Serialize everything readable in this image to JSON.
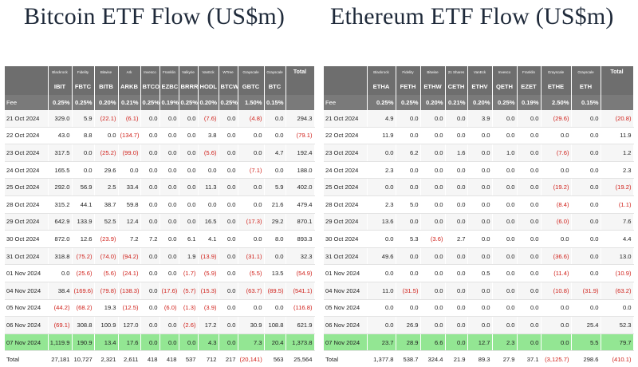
{
  "btc": {
    "title": "Bitcoin ETF Flow (US$m)",
    "issuers": [
      "Blackrock",
      "Fidelity",
      "Bitwise",
      "Ark",
      "Invesco",
      "Franklin",
      "Valkyrie",
      "VanEck",
      "WTree",
      "Grayscale",
      "Grayscale",
      "Total"
    ],
    "tickers": [
      "IBIT",
      "FBTC",
      "BITB",
      "ARKB",
      "BTCO",
      "EZBC",
      "BRRR",
      "HODL",
      "BTCW",
      "GBTC",
      "BTC",
      ""
    ],
    "fee": {
      "label": "Fee",
      "values": [
        "0.25%",
        "0.25%",
        "0.20%",
        "0.21%",
        "0.25%",
        "0.19%",
        "0.25%",
        "0.20%",
        "0.25%",
        "1.50%",
        "0.15%",
        ""
      ]
    },
    "rows": [
      {
        "date": "21 Oct 2024",
        "values": [
          "329.0",
          "5.9",
          "(22.1)",
          "(6.1)",
          "0.0",
          "0.0",
          "0.0",
          "(7.6)",
          "0.0",
          "(4.8)",
          "0.0",
          "294.3"
        ]
      },
      {
        "date": "22 Oct 2024",
        "values": [
          "43.0",
          "8.8",
          "0.0",
          "(134.7)",
          "0.0",
          "0.0",
          "0.0",
          "3.8",
          "0.0",
          "0.0",
          "0.0",
          "(79.1)"
        ]
      },
      {
        "date": "23 Oct 2024",
        "values": [
          "317.5",
          "0.0",
          "(25.2)",
          "(99.0)",
          "0.0",
          "0.0",
          "0.0",
          "(5.6)",
          "0.0",
          "0.0",
          "4.7",
          "192.4"
        ]
      },
      {
        "date": "24 Oct 2024",
        "values": [
          "165.5",
          "0.0",
          "29.6",
          "0.0",
          "0.0",
          "0.0",
          "0.0",
          "0.0",
          "0.0",
          "(7.1)",
          "0.0",
          "188.0"
        ]
      },
      {
        "date": "25 Oct 2024",
        "values": [
          "292.0",
          "56.9",
          "2.5",
          "33.4",
          "0.0",
          "0.0",
          "0.0",
          "11.3",
          "0.0",
          "0.0",
          "5.9",
          "402.0"
        ]
      },
      {
        "date": "28 Oct 2024",
        "values": [
          "315.2",
          "44.1",
          "38.7",
          "59.8",
          "0.0",
          "0.0",
          "0.0",
          "0.0",
          "0.0",
          "0.0",
          "21.6",
          "479.4"
        ]
      },
      {
        "date": "29 Oct 2024",
        "values": [
          "642.9",
          "133.9",
          "52.5",
          "12.4",
          "0.0",
          "0.0",
          "0.0",
          "16.5",
          "0.0",
          "(17.3)",
          "29.2",
          "870.1"
        ]
      },
      {
        "date": "30 Oct 2024",
        "values": [
          "872.0",
          "12.6",
          "(23.9)",
          "7.2",
          "7.2",
          "0.0",
          "6.1",
          "4.1",
          "0.0",
          "0.0",
          "8.0",
          "893.3"
        ]
      },
      {
        "date": "31 Oct 2024",
        "values": [
          "318.8",
          "(75.2)",
          "(74.0)",
          "(94.2)",
          "0.0",
          "0.0",
          "1.9",
          "(13.9)",
          "0.0",
          "(31.1)",
          "0.0",
          "32.3"
        ]
      },
      {
        "date": "01 Nov 2024",
        "values": [
          "0.0",
          "(25.6)",
          "(5.6)",
          "(24.1)",
          "0.0",
          "0.0",
          "(1.7)",
          "(5.9)",
          "0.0",
          "(5.5)",
          "13.5",
          "(54.9)"
        ]
      },
      {
        "date": "04 Nov 2024",
        "values": [
          "38.4",
          "(169.6)",
          "(79.8)",
          "(138.3)",
          "0.0",
          "(17.6)",
          "(5.7)",
          "(15.3)",
          "0.0",
          "(63.7)",
          "(89.5)",
          "(541.1)"
        ]
      },
      {
        "date": "05 Nov 2024",
        "values": [
          "(44.2)",
          "(68.2)",
          "19.3",
          "(12.5)",
          "0.0",
          "(6.0)",
          "(1.3)",
          "(3.9)",
          "0.0",
          "0.0",
          "0.0",
          "(116.8)"
        ]
      },
      {
        "date": "06 Nov 2024",
        "values": [
          "(69.1)",
          "308.8",
          "100.9",
          "127.0",
          "0.0",
          "0.0",
          "(2.6)",
          "17.2",
          "0.0",
          "30.9",
          "108.8",
          "621.9"
        ]
      },
      {
        "date": "07 Nov 2024",
        "values": [
          "1,119.9",
          "190.9",
          "13.4",
          "17.6",
          "0.0",
          "0.0",
          "0.0",
          "4.3",
          "0.0",
          "7.3",
          "20.4",
          "1,373.8"
        ],
        "highlight": true
      }
    ],
    "total": {
      "label": "Total",
      "values": [
        "27,181",
        "10,727",
        "2,321",
        "2,611",
        "418",
        "418",
        "537",
        "712",
        "217",
        "(20,141)",
        "563",
        "25,564"
      ]
    }
  },
  "eth": {
    "title": "Ethereum ETF Flow (US$m)",
    "issuers": [
      "Blackrock",
      "Fidelity",
      "Bitwise",
      "21 Shares",
      "VanEck",
      "Invesco",
      "Franklin",
      "Grayscale",
      "Grayscale",
      "Total"
    ],
    "tickers": [
      "ETHA",
      "FETH",
      "ETHW",
      "CETH",
      "ETHV",
      "QETH",
      "EZET",
      "ETHE",
      "ETH",
      ""
    ],
    "fee": {
      "label": "Fee",
      "values": [
        "0.25%",
        "0.25%",
        "0.20%",
        "0.21%",
        "0.20%",
        "0.25%",
        "0.19%",
        "2.50%",
        "0.15%",
        ""
      ]
    },
    "rows": [
      {
        "date": "21 Oct 2024",
        "values": [
          "4.9",
          "0.0",
          "0.0",
          "0.0",
          "3.9",
          "0.0",
          "0.0",
          "(29.6)",
          "0.0",
          "(20.8)"
        ]
      },
      {
        "date": "22 Oct 2024",
        "values": [
          "11.9",
          "0.0",
          "0.0",
          "0.0",
          "0.0",
          "0.0",
          "0.0",
          "0.0",
          "0.0",
          "11.9"
        ]
      },
      {
        "date": "23 Oct 2024",
        "values": [
          "0.0",
          "6.2",
          "0.0",
          "1.6",
          "0.0",
          "1.0",
          "0.0",
          "(7.6)",
          "0.0",
          "1.2"
        ]
      },
      {
        "date": "24 Oct 2024",
        "values": [
          "2.3",
          "0.0",
          "0.0",
          "0.0",
          "0.0",
          "0.0",
          "0.0",
          "0.0",
          "0.0",
          "2.3"
        ]
      },
      {
        "date": "25 Oct 2024",
        "values": [
          "0.0",
          "0.0",
          "0.0",
          "0.0",
          "0.0",
          "0.0",
          "0.0",
          "(19.2)",
          "0.0",
          "(19.2)"
        ]
      },
      {
        "date": "28 Oct 2024",
        "values": [
          "2.3",
          "5.0",
          "0.0",
          "0.0",
          "0.0",
          "0.0",
          "0.0",
          "(8.4)",
          "0.0",
          "(1.1)"
        ]
      },
      {
        "date": "29 Oct 2024",
        "values": [
          "13.6",
          "0.0",
          "0.0",
          "0.0",
          "0.0",
          "0.0",
          "0.0",
          "(6.0)",
          "0.0",
          "7.6"
        ]
      },
      {
        "date": "30 Oct 2024",
        "values": [
          "0.0",
          "5.3",
          "(3.6)",
          "2.7",
          "0.0",
          "0.0",
          "0.0",
          "0.0",
          "0.0",
          "4.4"
        ]
      },
      {
        "date": "31 Oct 2024",
        "values": [
          "49.6",
          "0.0",
          "0.0",
          "0.0",
          "0.0",
          "0.0",
          "0.0",
          "(36.6)",
          "0.0",
          "13.0"
        ]
      },
      {
        "date": "01 Nov 2024",
        "values": [
          "0.0",
          "0.0",
          "0.0",
          "0.0",
          "0.5",
          "0.0",
          "0.0",
          "(11.4)",
          "0.0",
          "(10.9)"
        ]
      },
      {
        "date": "04 Nov 2024",
        "values": [
          "11.0",
          "(31.5)",
          "0.0",
          "0.0",
          "0.0",
          "0.0",
          "0.0",
          "(10.8)",
          "(31.9)",
          "(63.2)"
        ]
      },
      {
        "date": "05 Nov 2024",
        "values": [
          "0.0",
          "0.0",
          "0.0",
          "0.0",
          "0.0",
          "0.0",
          "0.0",
          "0.0",
          "0.0",
          "0.0"
        ]
      },
      {
        "date": "06 Nov 2024",
        "values": [
          "0.0",
          "26.9",
          "0.0",
          "0.0",
          "0.0",
          "0.0",
          "0.0",
          "0.0",
          "25.4",
          "52.3"
        ]
      },
      {
        "date": "07 Nov 2024",
        "values": [
          "23.7",
          "28.9",
          "6.6",
          "0.0",
          "12.7",
          "2.3",
          "0.0",
          "0.0",
          "5.5",
          "79.7"
        ],
        "highlight": true
      }
    ],
    "total": {
      "label": "Total",
      "values": [
        "1,377.8",
        "538.7",
        "324.4",
        "21.9",
        "89.3",
        "27.9",
        "37.1",
        "(3,125.7)",
        "298.6",
        "(410.1)"
      ]
    }
  }
}
